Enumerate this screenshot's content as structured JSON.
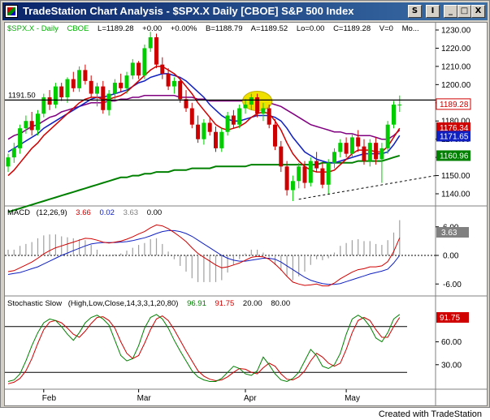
{
  "window": {
    "title": "TradeStation Chart Analysis - $SPX.X  Daily  [CBOE] S&P 500 Index",
    "buttons": {
      "symbol": "S",
      "info": "I",
      "minimize": "_",
      "maximize": "□",
      "close": "X"
    }
  },
  "price_panel": {
    "header": {
      "symbol": "$SPX.X - Daily",
      "exchange": "CBOE",
      "last": "L=1189.28",
      "change": "+0.00",
      "pct": "+0.00%",
      "bid": "B=1188.79",
      "ask": "A=1189.52",
      "low": "Lo=0.00",
      "close": "C=1189.28",
      "volume": "V=0",
      "more": "Mo..."
    },
    "ticks": [
      "1230.00",
      "1220.00",
      "1210.00",
      "1200.00",
      "1190.00",
      "1180.00",
      "1170.00",
      "1160.00",
      "1150.00",
      "1140.00"
    ],
    "resistance_label": "1191.50",
    "price_tags": [
      {
        "text": "1189.28",
        "bg": "#ffffff",
        "fg": "#d00000",
        "value": 1189.28
      },
      {
        "text": "1176.34",
        "bg": "#d00000",
        "fg": "#ffffff",
        "value": 1176.34
      },
      {
        "text": "1171.65",
        "bg": "#1020c0",
        "fg": "#ffffff",
        "value": 1171.65
      },
      {
        "text": "1160.96",
        "bg": "#008000",
        "fg": "#ffffff",
        "value": 1160.96
      }
    ]
  },
  "macd_panel": {
    "label": "MACD",
    "params": "(12,26,9)",
    "macd": "3.66",
    "signal": "0.02",
    "hist": "3.63",
    "zero": "0.00",
    "ticks": [
      "6.00",
      "0.00",
      "-6.00"
    ],
    "tag": "3.63"
  },
  "stoch_panel": {
    "label": "Stochastic Slow",
    "params": "(High,Low,Close,14,3,3,1,20,80)",
    "k": "96.91",
    "d": "91.75",
    "os": "20.00",
    "ob": "80.00",
    "ticks": [
      "60.00",
      "30.00"
    ],
    "tag": "91.75"
  },
  "months": [
    "Feb",
    "Mar",
    "Apr",
    "May"
  ],
  "footer": "Created with TradeStation",
  "colors": {
    "up": "#00cc00",
    "down": "#cc0000",
    "ma_fast": "#d00000",
    "ma_mid": "#1020c0",
    "ma_slow": "#800080",
    "ma_long": "#008000",
    "highlight": "#f0e000"
  },
  "chart_data": {
    "type": "candlestick",
    "candles": [
      [
        1155,
        1162,
        1152,
        1160
      ],
      [
        1160,
        1168,
        1157,
        1165
      ],
      [
        1165,
        1178,
        1162,
        1176
      ],
      [
        1176,
        1183,
        1173,
        1180
      ],
      [
        1180,
        1185,
        1172,
        1175
      ],
      [
        1175,
        1186,
        1172,
        1184
      ],
      [
        1184,
        1195,
        1182,
        1193
      ],
      [
        1193,
        1197,
        1186,
        1189
      ],
      [
        1189,
        1201,
        1187,
        1199
      ],
      [
        1199,
        1201,
        1191,
        1193
      ],
      [
        1193,
        1204,
        1190,
        1203
      ],
      [
        1203,
        1207,
        1196,
        1198
      ],
      [
        1198,
        1210,
        1196,
        1208
      ],
      [
        1208,
        1211,
        1200,
        1202
      ],
      [
        1202,
        1205,
        1193,
        1195
      ],
      [
        1195,
        1201,
        1188,
        1199
      ],
      [
        1199,
        1202,
        1184,
        1186
      ],
      [
        1186,
        1197,
        1183,
        1195
      ],
      [
        1195,
        1203,
        1192,
        1201
      ],
      [
        1201,
        1206,
        1196,
        1198
      ],
      [
        1198,
        1207,
        1195,
        1205
      ],
      [
        1205,
        1214,
        1203,
        1212
      ],
      [
        1212,
        1213,
        1203,
        1205
      ],
      [
        1205,
        1222,
        1203,
        1220
      ],
      [
        1220,
        1229,
        1218,
        1226
      ],
      [
        1226,
        1228,
        1209,
        1211
      ],
      [
        1211,
        1215,
        1203,
        1206
      ],
      [
        1206,
        1209,
        1197,
        1199
      ],
      [
        1199,
        1204,
        1195,
        1202
      ],
      [
        1202,
        1204,
        1190,
        1192
      ],
      [
        1192,
        1197,
        1185,
        1187
      ],
      [
        1187,
        1190,
        1176,
        1178
      ],
      [
        1178,
        1183,
        1168,
        1170
      ],
      [
        1170,
        1181,
        1167,
        1179
      ],
      [
        1179,
        1182,
        1172,
        1174
      ],
      [
        1174,
        1177,
        1163,
        1165
      ],
      [
        1165,
        1176,
        1163,
        1174
      ],
      [
        1174,
        1185,
        1172,
        1183
      ],
      [
        1183,
        1186,
        1176,
        1178
      ],
      [
        1178,
        1189,
        1176,
        1187
      ],
      [
        1187,
        1192,
        1184,
        1189
      ],
      [
        1189,
        1195,
        1186,
        1193
      ],
      [
        1193,
        1195,
        1182,
        1184
      ],
      [
        1184,
        1190,
        1180,
        1187
      ],
      [
        1187,
        1189,
        1176,
        1178
      ],
      [
        1178,
        1181,
        1164,
        1166
      ],
      [
        1166,
        1169,
        1152,
        1155
      ],
      [
        1155,
        1158,
        1139,
        1142
      ],
      [
        1142,
        1150,
        1136,
        1147
      ],
      [
        1147,
        1157,
        1143,
        1155
      ],
      [
        1155,
        1158,
        1143,
        1146
      ],
      [
        1146,
        1160,
        1144,
        1158
      ],
      [
        1158,
        1163,
        1152,
        1154
      ],
      [
        1154,
        1157,
        1143,
        1145
      ],
      [
        1145,
        1159,
        1140,
        1157
      ],
      [
        1157,
        1165,
        1154,
        1163
      ],
      [
        1163,
        1170,
        1160,
        1168
      ],
      [
        1168,
        1171,
        1160,
        1162
      ],
      [
        1162,
        1173,
        1160,
        1171
      ],
      [
        1171,
        1175,
        1163,
        1166
      ],
      [
        1166,
        1170,
        1156,
        1158
      ],
      [
        1158,
        1170,
        1155,
        1168
      ],
      [
        1168,
        1171,
        1156,
        1159
      ],
      [
        1159,
        1168,
        1146,
        1165
      ],
      [
        1165,
        1180,
        1162,
        1178
      ],
      [
        1178,
        1191,
        1176,
        1189
      ],
      [
        1189,
        1194,
        1185,
        1189
      ]
    ],
    "resistance": 1191.5,
    "ma_fast": [
      1150,
      1153,
      1157,
      1161,
      1165,
      1168,
      1172,
      1175,
      1178,
      1181,
      1184,
      1187,
      1190,
      1192,
      1193,
      1193,
      1192,
      1192,
      1193,
      1194,
      1196,
      1199,
      1202,
      1205,
      1208,
      1210,
      1210,
      1208,
      1206,
      1203,
      1199,
      1195,
      1190,
      1186,
      1182,
      1178,
      1176,
      1175,
      1176,
      1177,
      1179,
      1182,
      1184,
      1185,
      1184,
      1180,
      1175,
      1168,
      1162,
      1158,
      1155,
      1153,
      1152,
      1152,
      1152,
      1153,
      1156,
      1159,
      1162,
      1164,
      1164,
      1164,
      1163,
      1163,
      1166,
      1171,
      1176
    ],
    "ma_mid": [
      1163,
      1165,
      1167,
      1169,
      1171,
      1173,
      1176,
      1178,
      1180,
      1182,
      1184,
      1186,
      1188,
      1190,
      1192,
      1193,
      1193,
      1194,
      1195,
      1196,
      1197,
      1199,
      1201,
      1202,
      1204,
      1205,
      1206,
      1206,
      1205,
      1204,
      1202,
      1199,
      1196,
      1193,
      1189,
      1186,
      1183,
      1181,
      1180,
      1180,
      1181,
      1182,
      1183,
      1183,
      1183,
      1182,
      1180,
      1176,
      1171,
      1167,
      1163,
      1161,
      1159,
      1158,
      1157,
      1157,
      1158,
      1159,
      1160,
      1161,
      1162,
      1162,
      1162,
      1162,
      1163,
      1167,
      1172
    ],
    "ma_slow": [
      1170,
      1172,
      1173,
      1175,
      1177,
      1178,
      1180,
      1182,
      1183,
      1185,
      1186,
      1187,
      1188,
      1189,
      1190,
      1190,
      1190,
      1191,
      1191,
      1192,
      1192,
      1193,
      1193,
      1194,
      1194,
      1194,
      1194,
      1194,
      1194,
      1193,
      1193,
      1193,
      1192,
      1192,
      1191,
      1191,
      1191,
      1191,
      1191,
      1191,
      1191,
      1191,
      1191,
      1191,
      1190,
      1189,
      1188,
      1186,
      1184,
      1182,
      1180,
      1178,
      1177,
      1176,
      1175,
      1174,
      1174,
      1173,
      1173,
      1172,
      1172,
      1172,
      1171,
      1170,
      1170,
      1172,
      1175
    ],
    "ma_long": [
      1130,
      1131,
      1132,
      1133,
      1134,
      1135,
      1136,
      1137,
      1138,
      1139,
      1140,
      1141,
      1142,
      1143,
      1144,
      1145,
      1146,
      1147,
      1148,
      1149,
      1149,
      1150,
      1150,
      1151,
      1151,
      1152,
      1152,
      1152,
      1153,
      1153,
      1153,
      1154,
      1154,
      1154,
      1154,
      1155,
      1155,
      1155,
      1155,
      1155,
      1155,
      1156,
      1156,
      1156,
      1156,
      1156,
      1156,
      1156,
      1156,
      1156,
      1156,
      1156,
      1156,
      1157,
      1157,
      1157,
      1157,
      1157,
      1157,
      1158,
      1158,
      1158,
      1158,
      1158,
      1159,
      1160,
      1161
    ],
    "macd": [
      -3.4,
      -3.2,
      -2.6,
      -2,
      -1.4,
      -0.6,
      0.3,
      1.0,
      1.6,
      2.0,
      2.4,
      2.8,
      3.2,
      3.6,
      3.5,
      3.2,
      2.8,
      2.6,
      2.8,
      3.0,
      3.4,
      3.9,
      4.5,
      5.0,
      5.8,
      6.4,
      6.2,
      5.6,
      4.8,
      3.9,
      2.9,
      1.6,
      0.4,
      -0.4,
      -1.2,
      -2.0,
      -2.6,
      -2.4,
      -2.0,
      -1.6,
      -1.0,
      -0.4,
      -0.2,
      -0.3,
      -0.8,
      -1.8,
      -3.0,
      -4.4,
      -5.6,
      -6.0,
      -6.3,
      -6.2,
      -6.0,
      -6.4,
      -6.4,
      -5.8,
      -4.9,
      -4.2,
      -3.5,
      -3.0,
      -2.8,
      -2.4,
      -2.4,
      -2.2,
      -1.3,
      0.8,
      3.7
    ],
    "signal": [
      -4.0,
      -3.8,
      -3.6,
      -3.2,
      -2.8,
      -2.4,
      -1.8,
      -1.2,
      -0.6,
      0.0,
      0.5,
      1.0,
      1.5,
      2.0,
      2.4,
      2.6,
      2.7,
      2.7,
      2.7,
      2.8,
      2.9,
      3.1,
      3.4,
      3.7,
      4.1,
      4.6,
      5.0,
      5.2,
      5.2,
      5.0,
      4.6,
      4.0,
      3.2,
      2.4,
      1.6,
      0.8,
      0.0,
      -0.6,
      -1.0,
      -1.2,
      -1.2,
      -1.0,
      -0.8,
      -0.6,
      -0.6,
      -0.8,
      -1.4,
      -2.2,
      -3.0,
      -3.8,
      -4.6,
      -5.2,
      -5.6,
      -5.9,
      -6.1,
      -6.1,
      -5.9,
      -5.5,
      -5.1,
      -4.7,
      -4.3,
      -3.9,
      -3.6,
      -3.3,
      -2.9,
      -1.6,
      0.0
    ],
    "stoch_k": [
      8,
      10,
      18,
      35,
      55,
      72,
      85,
      90,
      88,
      80,
      70,
      62,
      72,
      85,
      92,
      95,
      90,
      82,
      62,
      42,
      35,
      38,
      55,
      78,
      92,
      96,
      90,
      78,
      62,
      48,
      35,
      22,
      14,
      10,
      8,
      8,
      12,
      20,
      28,
      25,
      18,
      16,
      22,
      40,
      30,
      18,
      10,
      8,
      12,
      20,
      35,
      50,
      42,
      28,
      25,
      30,
      45,
      70,
      90,
      95,
      90,
      80,
      65,
      60,
      72,
      90,
      96
    ],
    "stoch_d": [
      5,
      7,
      12,
      22,
      38,
      58,
      76,
      86,
      88,
      85,
      78,
      70,
      66,
      74,
      84,
      92,
      93,
      88,
      78,
      60,
      45,
      38,
      42,
      58,
      76,
      90,
      94,
      88,
      76,
      62,
      48,
      35,
      22,
      15,
      11,
      9,
      10,
      14,
      20,
      25,
      24,
      20,
      18,
      26,
      32,
      28,
      18,
      11,
      10,
      14,
      22,
      35,
      45,
      40,
      32,
      28,
      32,
      50,
      72,
      88,
      92,
      88,
      76,
      66,
      66,
      80,
      92
    ]
  }
}
